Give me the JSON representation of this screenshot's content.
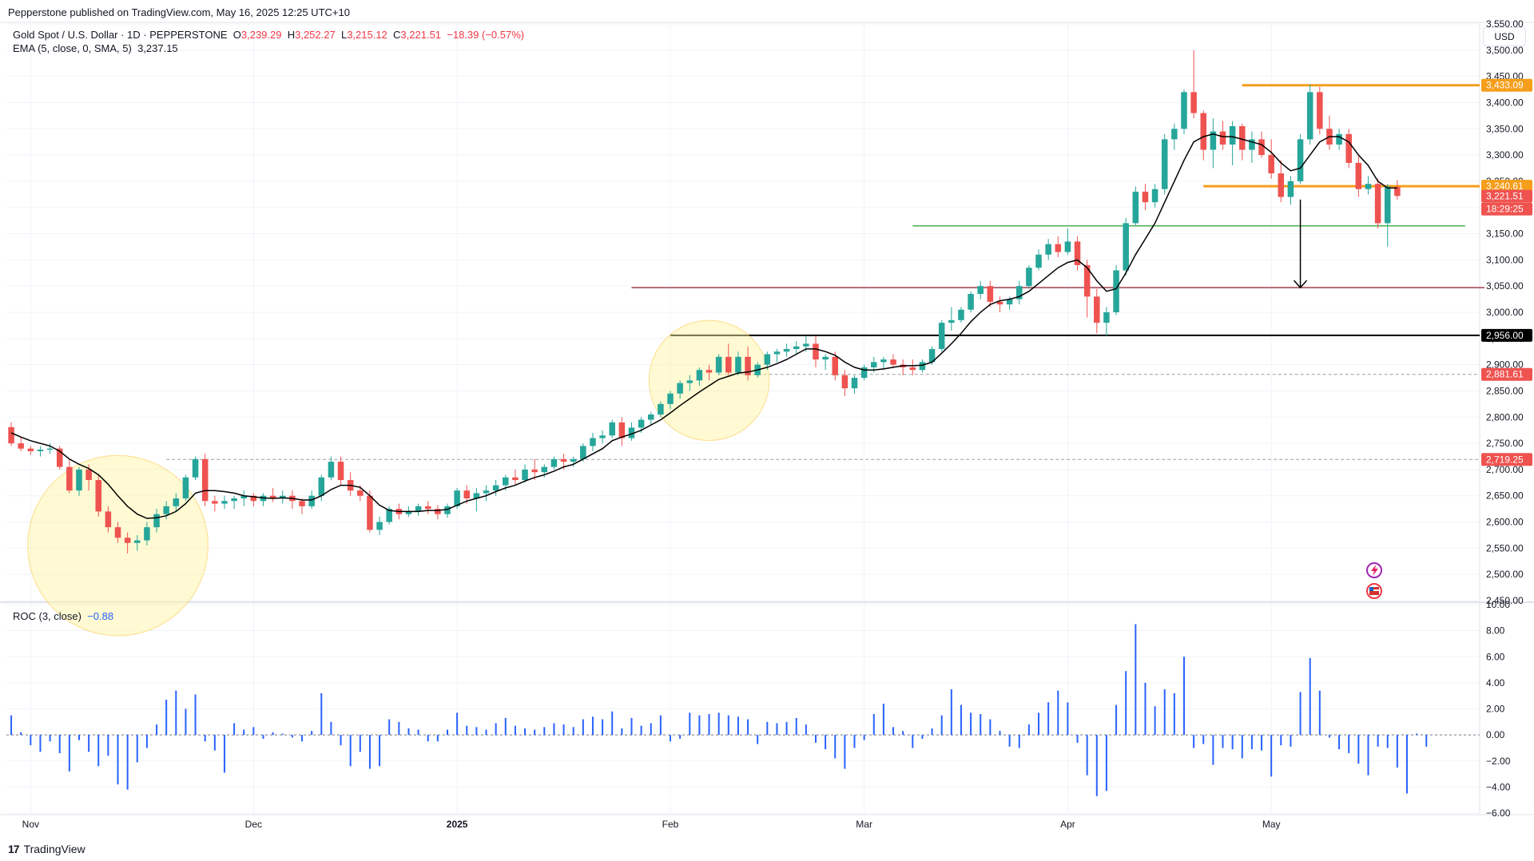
{
  "header": {
    "publisher": "Pepperstone published on TradingView.com, May 16, 2025 12:25 UTC+10",
    "symbol": "Gold Spot / U.S. Dollar · 1D · PEPPERSTONE",
    "ohlc": {
      "o_label": "O",
      "o": "3,239.29",
      "h_label": "H",
      "h": "3,252.27",
      "l_label": "L",
      "l": "3,215.12",
      "c_label": "C",
      "c": "3,221.51",
      "change": "−18.39 (−0.57%)"
    },
    "ema_label": "EMA (5, close, 0, SMA, 5)",
    "ema_value": "3,237.15",
    "roc_label": "ROC (3, close)",
    "roc_value": "−0.88",
    "currency": "USD",
    "footer_logo": "17",
    "footer_brand": "TradingView"
  },
  "colors": {
    "up": "#26a69a",
    "down": "#ef5350",
    "ema": "#000000",
    "roc": "#2962ff",
    "resistance": "#f59e1b",
    "support_green": "#4caf50",
    "support_maroon": "#a0404e",
    "support_black": "#000000",
    "dashed": "#9e9e9e",
    "circle": "#fff59d"
  },
  "chart_data": {
    "type": "candlestick",
    "title": "Gold Spot / U.S. Dollar · 1D · PEPPERSTONE",
    "price_axis": {
      "ylim": [
        2450,
        3550
      ],
      "ticks": [
        "3,550.00",
        "3,500.00",
        "3,450.00",
        "3,400.00",
        "3,350.00",
        "3,300.00",
        "3,250.00",
        "3,200.00",
        "3,150.00",
        "3,100.00",
        "3,050.00",
        "3,000.00",
        "2,950.00",
        "2,900.00",
        "2,850.00",
        "2,800.00",
        "2,750.00",
        "2,700.00",
        "2,650.00",
        "2,600.00",
        "2,550.00",
        "2,500.00",
        "2,450.00"
      ],
      "tick_values": [
        3550,
        3500,
        3450,
        3400,
        3350,
        3300,
        3250,
        3200,
        3150,
        3100,
        3050,
        3000,
        2950,
        2900,
        2850,
        2800,
        2750,
        2700,
        2650,
        2600,
        2550,
        2500,
        2450
      ]
    },
    "roc_axis": {
      "ylim": [
        -6,
        10
      ],
      "ticks": [
        "10.00",
        "8.00",
        "6.00",
        "4.00",
        "2.00",
        "0.00",
        "−2.00",
        "−4.00",
        "−6.00"
      ],
      "tick_values": [
        10,
        8,
        6,
        4,
        2,
        0,
        -2,
        -4,
        -6
      ]
    },
    "x_labels": [
      {
        "label": "Nov",
        "index": 2,
        "bold": false
      },
      {
        "label": "Dec",
        "index": 25,
        "bold": false
      },
      {
        "label": "2025",
        "index": 46,
        "bold": true
      },
      {
        "label": "Feb",
        "index": 68,
        "bold": false
      },
      {
        "label": "Mar",
        "index": 88,
        "bold": false
      },
      {
        "label": "Apr",
        "index": 109,
        "bold": false
      },
      {
        "label": "May",
        "index": 130,
        "bold": false
      }
    ],
    "bar_count_total": 152,
    "candles": [
      [
        2781,
        2790,
        2745,
        2750
      ],
      [
        2750,
        2762,
        2735,
        2740
      ],
      [
        2740,
        2745,
        2728,
        2735
      ],
      [
        2735,
        2745,
        2725,
        2738
      ],
      [
        2738,
        2750,
        2730,
        2740
      ],
      [
        2740,
        2745,
        2700,
        2705
      ],
      [
        2705,
        2720,
        2655,
        2660
      ],
      [
        2660,
        2705,
        2650,
        2700
      ],
      [
        2700,
        2710,
        2660,
        2680
      ],
      [
        2680,
        2690,
        2610,
        2620
      ],
      [
        2620,
        2630,
        2580,
        2590
      ],
      [
        2590,
        2600,
        2560,
        2570
      ],
      [
        2570,
        2580,
        2540,
        2560
      ],
      [
        2560,
        2575,
        2545,
        2565
      ],
      [
        2565,
        2600,
        2555,
        2590
      ],
      [
        2590,
        2625,
        2580,
        2615
      ],
      [
        2615,
        2640,
        2605,
        2630
      ],
      [
        2630,
        2655,
        2620,
        2645
      ],
      [
        2645,
        2690,
        2640,
        2685
      ],
      [
        2685,
        2725,
        2680,
        2720
      ],
      [
        2720,
        2730,
        2630,
        2640
      ],
      [
        2640,
        2650,
        2620,
        2635
      ],
      [
        2635,
        2650,
        2625,
        2640
      ],
      [
        2640,
        2650,
        2625,
        2645
      ],
      [
        2645,
        2660,
        2630,
        2650
      ],
      [
        2650,
        2655,
        2630,
        2640
      ],
      [
        2640,
        2655,
        2630,
        2650
      ],
      [
        2650,
        2665,
        2638,
        2645
      ],
      [
        2645,
        2660,
        2635,
        2650
      ],
      [
        2650,
        2660,
        2625,
        2640
      ],
      [
        2640,
        2645,
        2615,
        2630
      ],
      [
        2630,
        2660,
        2625,
        2650
      ],
      [
        2650,
        2690,
        2640,
        2685
      ],
      [
        2685,
        2725,
        2680,
        2715
      ],
      [
        2715,
        2725,
        2670,
        2680
      ],
      [
        2680,
        2695,
        2650,
        2660
      ],
      [
        2660,
        2670,
        2640,
        2650
      ],
      [
        2650,
        2660,
        2580,
        2585
      ],
      [
        2585,
        2610,
        2575,
        2600
      ],
      [
        2600,
        2630,
        2595,
        2625
      ],
      [
        2625,
        2635,
        2605,
        2615
      ],
      [
        2615,
        2630,
        2610,
        2620
      ],
      [
        2620,
        2635,
        2612,
        2630
      ],
      [
        2630,
        2640,
        2615,
        2625
      ],
      [
        2625,
        2632,
        2605,
        2615
      ],
      [
        2615,
        2635,
        2608,
        2630
      ],
      [
        2630,
        2665,
        2625,
        2660
      ],
      [
        2660,
        2670,
        2635,
        2645
      ],
      [
        2645,
        2665,
        2620,
        2655
      ],
      [
        2655,
        2670,
        2640,
        2660
      ],
      [
        2660,
        2680,
        2650,
        2670
      ],
      [
        2670,
        2690,
        2660,
        2685
      ],
      [
        2685,
        2700,
        2670,
        2680
      ],
      [
        2680,
        2710,
        2675,
        2700
      ],
      [
        2700,
        2720,
        2680,
        2695
      ],
      [
        2695,
        2710,
        2685,
        2705
      ],
      [
        2705,
        2725,
        2700,
        2720
      ],
      [
        2720,
        2730,
        2700,
        2715
      ],
      [
        2715,
        2725,
        2705,
        2720
      ],
      [
        2720,
        2750,
        2715,
        2745
      ],
      [
        2745,
        2770,
        2735,
        2760
      ],
      [
        2760,
        2775,
        2750,
        2765
      ],
      [
        2765,
        2795,
        2760,
        2790
      ],
      [
        2790,
        2800,
        2745,
        2760
      ],
      [
        2760,
        2790,
        2755,
        2780
      ],
      [
        2780,
        2800,
        2770,
        2795
      ],
      [
        2795,
        2810,
        2785,
        2805
      ],
      [
        2805,
        2830,
        2800,
        2825
      ],
      [
        2825,
        2850,
        2815,
        2845
      ],
      [
        2845,
        2870,
        2835,
        2865
      ],
      [
        2865,
        2880,
        2850,
        2870
      ],
      [
        2870,
        2895,
        2860,
        2890
      ],
      [
        2890,
        2900,
        2870,
        2885
      ],
      [
        2885,
        2920,
        2880,
        2915
      ],
      [
        2915,
        2940,
        2880,
        2885
      ],
      [
        2885,
        2925,
        2880,
        2915
      ],
      [
        2915,
        2935,
        2870,
        2880
      ],
      [
        2880,
        2905,
        2875,
        2900
      ],
      [
        2900,
        2925,
        2890,
        2920
      ],
      [
        2920,
        2930,
        2905,
        2925
      ],
      [
        2925,
        2940,
        2915,
        2930
      ],
      [
        2930,
        2945,
        2920,
        2935
      ],
      [
        2935,
        2955,
        2925,
        2940
      ],
      [
        2940,
        2955,
        2895,
        2910
      ],
      [
        2910,
        2920,
        2890,
        2915
      ],
      [
        2915,
        2925,
        2870,
        2880
      ],
      [
        2880,
        2890,
        2840,
        2855
      ],
      [
        2855,
        2880,
        2845,
        2875
      ],
      [
        2875,
        2900,
        2870,
        2895
      ],
      [
        2895,
        2915,
        2885,
        2905
      ],
      [
        2905,
        2915,
        2890,
        2910
      ],
      [
        2910,
        2920,
        2895,
        2900
      ],
      [
        2900,
        2910,
        2880,
        2895
      ],
      [
        2895,
        2910,
        2880,
        2890
      ],
      [
        2890,
        2910,
        2885,
        2905
      ],
      [
        2905,
        2935,
        2900,
        2930
      ],
      [
        2930,
        2985,
        2925,
        2980
      ],
      [
        2980,
        3010,
        2965,
        2985
      ],
      [
        2985,
        3010,
        2980,
        3005
      ],
      [
        3005,
        3040,
        3000,
        3035
      ],
      [
        3035,
        3060,
        3025,
        3050
      ],
      [
        3050,
        3060,
        3010,
        3020
      ],
      [
        3020,
        3030,
        3000,
        3015
      ],
      [
        3015,
        3030,
        3005,
        3025
      ],
      [
        3025,
        3060,
        3015,
        3050
      ],
      [
        3050,
        3090,
        3045,
        3085
      ],
      [
        3085,
        3120,
        3080,
        3110
      ],
      [
        3110,
        3140,
        3100,
        3130
      ],
      [
        3130,
        3145,
        3105,
        3115
      ],
      [
        3115,
        3160,
        3110,
        3135
      ],
      [
        3135,
        3145,
        3080,
        3090
      ],
      [
        3090,
        3100,
        2990,
        3030
      ],
      [
        3030,
        3045,
        2960,
        2980
      ],
      [
        2980,
        3010,
        2955,
        3000
      ],
      [
        3000,
        3090,
        2995,
        3080
      ],
      [
        3080,
        3180,
        3070,
        3170
      ],
      [
        3170,
        3240,
        3165,
        3230
      ],
      [
        3230,
        3245,
        3195,
        3210
      ],
      [
        3210,
        3245,
        3200,
        3235
      ],
      [
        3235,
        3340,
        3225,
        3330
      ],
      [
        3330,
        3360,
        3310,
        3350
      ],
      [
        3350,
        3425,
        3340,
        3420
      ],
      [
        3420,
        3500,
        3370,
        3380
      ],
      [
        3380,
        3385,
        3290,
        3310
      ],
      [
        3310,
        3370,
        3275,
        3345
      ],
      [
        3345,
        3365,
        3310,
        3320
      ],
      [
        3320,
        3365,
        3280,
        3355
      ],
      [
        3355,
        3360,
        3290,
        3310
      ],
      [
        3310,
        3345,
        3285,
        3330
      ],
      [
        3330,
        3345,
        3295,
        3300
      ],
      [
        3300,
        3330,
        3255,
        3265
      ],
      [
        3265,
        3290,
        3210,
        3220
      ],
      [
        3220,
        3260,
        3205,
        3250
      ],
      [
        3250,
        3340,
        3245,
        3330
      ],
      [
        3330,
        3435,
        3320,
        3420
      ],
      [
        3420,
        3430,
        3340,
        3350
      ],
      [
        3350,
        3375,
        3310,
        3320
      ],
      [
        3320,
        3350,
        3310,
        3340
      ],
      [
        3340,
        3350,
        3275,
        3285
      ],
      [
        3285,
        3300,
        3220,
        3235
      ],
      [
        3235,
        3260,
        3225,
        3245
      ],
      [
        3245,
        3255,
        3160,
        3170
      ],
      [
        3170,
        3245,
        3125,
        3240
      ],
      [
        3239,
        3252,
        3215,
        3222
      ]
    ],
    "ema": [
      2770,
      2762,
      2755,
      2750,
      2745,
      2735,
      2720,
      2710,
      2702,
      2690,
      2672,
      2650,
      2630,
      2615,
      2607,
      2608,
      2612,
      2620,
      2635,
      2655,
      2660,
      2660,
      2658,
      2655,
      2650,
      2648,
      2646,
      2645,
      2646,
      2645,
      2642,
      2642,
      2650,
      2662,
      2670,
      2670,
      2666,
      2650,
      2632,
      2622,
      2620,
      2620,
      2620,
      2622,
      2622,
      2624,
      2632,
      2640,
      2645,
      2650,
      2658,
      2665,
      2670,
      2678,
      2685,
      2690,
      2697,
      2705,
      2710,
      2720,
      2730,
      2740,
      2755,
      2762,
      2768,
      2775,
      2785,
      2795,
      2808,
      2822,
      2835,
      2848,
      2860,
      2872,
      2878,
      2884,
      2886,
      2890,
      2895,
      2902,
      2910,
      2920,
      2930,
      2930,
      2925,
      2918,
      2905,
      2895,
      2890,
      2890,
      2892,
      2895,
      2898,
      2898,
      2899,
      2905,
      2922,
      2940,
      2960,
      2982,
      3000,
      3015,
      3022,
      3025,
      3030,
      3040,
      3055,
      3070,
      3085,
      3095,
      3100,
      3085,
      3060,
      3040,
      3045,
      3075,
      3110,
      3140,
      3170,
      3210,
      3250,
      3290,
      3325,
      3335,
      3340,
      3335,
      3335,
      3330,
      3325,
      3320,
      3305,
      3285,
      3270,
      3275,
      3300,
      3325,
      3335,
      3335,
      3325,
      3300,
      3280,
      3250,
      3237,
      3237
    ],
    "roc": [
      1.5,
      0.2,
      -0.8,
      -1.3,
      -0.5,
      -1.4,
      -2.8,
      -0.4,
      -1.3,
      -2.4,
      -1.6,
      -3.8,
      -4.2,
      -2.1,
      -1.0,
      0.8,
      2.7,
      3.4,
      2.0,
      3.1,
      -0.5,
      -1.2,
      -2.9,
      0.9,
      0.4,
      0.6,
      -0.3,
      0.2,
      0.1,
      -0.2,
      -0.5,
      0.3,
      3.2,
      1.0,
      -0.8,
      -2.4,
      -1.3,
      -2.6,
      -2.4,
      1.2,
      1.0,
      0.5,
      0.4,
      -0.5,
      -0.5,
      0.4,
      1.7,
      0.7,
      0.6,
      0.4,
      0.9,
      1.3,
      0.7,
      0.5,
      0.4,
      0.6,
      0.9,
      0.8,
      0.6,
      1.2,
      1.4,
      1.2,
      1.8,
      0.5,
      1.3,
      0.7,
      0.9,
      1.5,
      -0.5,
      -0.3,
      1.7,
      1.5,
      1.6,
      1.7,
      1.5,
      1.4,
      1.2,
      -0.7,
      1.0,
      0.9,
      1.0,
      1.3,
      0.8,
      -0.6,
      -1.1,
      -1.8,
      -2.6,
      -1.0,
      -0.4,
      1.6,
      2.4,
      0.6,
      0.3,
      -1.0,
      -0.3,
      0.5,
      1.5,
      3.5,
      2.3,
      1.7,
      1.6,
      1.2,
      0.3,
      -0.9,
      -1.0,
      0.8,
      1.7,
      2.5,
      3.4,
      2.5,
      -0.6,
      -3.1,
      -4.7,
      -4.3,
      2.3,
      4.9,
      8.5,
      4.0,
      2.2,
      3.5,
      3.2,
      6.0,
      -1.0,
      -0.7,
      -2.3,
      -1.0,
      -1.1,
      -1.8,
      -1.1,
      -1.2,
      -3.2,
      -0.8,
      -0.9,
      3.3,
      5.9,
      3.4,
      -0.2,
      -1.1,
      -1.4,
      -2.2,
      -3.1,
      -0.9,
      -1.0,
      -2.5,
      -4.5,
      0.1,
      -0.9
    ],
    "price_tags": [
      {
        "label": "3,433.09",
        "value": 3433.09,
        "bg": "#f59e1b"
      },
      {
        "label": "3,240.61",
        "value": 3240.61,
        "bg": "#f59e1b"
      },
      {
        "label": "3,221.51",
        "value": 3221.51,
        "bg": "#ef5350"
      },
      {
        "label": "18:29:25",
        "value": 3197,
        "bg": "#ef5350"
      },
      {
        "label": "2,956.00",
        "value": 2956.0,
        "bg": "#000000"
      },
      {
        "label": "2,881.61",
        "value": 2881.61,
        "bg": "#ef5350"
      },
      {
        "label": "2,719.25",
        "value": 2719.25,
        "bg": "#ef5350"
      }
    ],
    "horizontal_lines": [
      {
        "value": 3433.09,
        "from_index": 127,
        "color": "#f59e1b",
        "width": 3,
        "dashed": false
      },
      {
        "value": 3240.61,
        "from_index": 123,
        "color": "#f59e1b",
        "width": 3,
        "dashed": false
      },
      {
        "value": 3165,
        "from_index": 93,
        "color": "#4caf50",
        "width": 1.5,
        "dashed": false,
        "to_index": 150
      },
      {
        "value": 3047,
        "from_index": 64,
        "color": "#a0404e",
        "width": 1.5,
        "dashed": false,
        "to_index": 152
      },
      {
        "value": 2956,
        "from_index": 68,
        "color": "#000000",
        "width": 2,
        "dashed": false
      },
      {
        "value": 2881.61,
        "from_index": 73,
        "color": "#9e9e9e",
        "width": 1,
        "dashed": true
      },
      {
        "value": 2719.25,
        "from_index": 16,
        "color": "#9e9e9e",
        "width": 1,
        "dashed": true
      }
    ],
    "arrow": {
      "index": 133,
      "from": 3215,
      "to": 3047
    },
    "circles": [
      {
        "index": 11,
        "value": 2555,
        "radius_idx": 3
      },
      {
        "index": 72,
        "value": 2870,
        "radius_idx": 2
      }
    ]
  }
}
